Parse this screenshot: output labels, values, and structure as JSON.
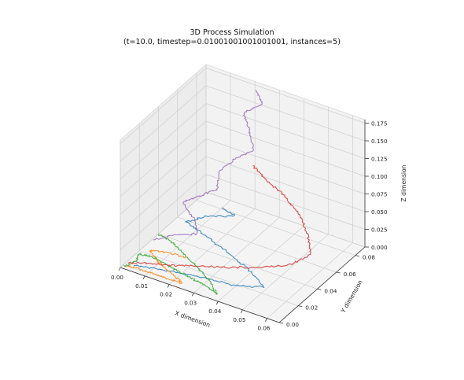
{
  "chart_data": {
    "type": "line",
    "title_lines": [
      "3D Process Simulation",
      "(t=10.0, timestep=0.01001001001001001, instances=5)"
    ],
    "xlabel": "X dimension",
    "ylabel": "Y dimension",
    "zlabel": "Z dimension",
    "xlim": [
      0,
      0.065
    ],
    "ylim": [
      0,
      0.09
    ],
    "zlim": [
      0,
      0.18
    ],
    "xticks": [
      "0.00",
      "0.01",
      "0.02",
      "0.03",
      "0.04",
      "0.05",
      "0.06"
    ],
    "yticks": [
      "0.00",
      "0.02",
      "0.04",
      "0.06",
      "0.08"
    ],
    "zticks": [
      "0.000",
      "0.025",
      "0.050",
      "0.075",
      "0.100",
      "0.125",
      "0.150",
      "0.175"
    ],
    "grid": true,
    "series": [
      {
        "color": "#1f77b4",
        "waypoints": [
          [
            0.004,
            0.004,
            0.003
          ],
          [
            0.012,
            0.006,
            0.006
          ],
          [
            0.022,
            0.01,
            0.006
          ],
          [
            0.032,
            0.012,
            0.007
          ],
          [
            0.042,
            0.016,
            0.005
          ],
          [
            0.05,
            0.022,
            0.007
          ],
          [
            0.04,
            0.03,
            0.012
          ],
          [
            0.028,
            0.036,
            0.017
          ],
          [
            0.018,
            0.04,
            0.022
          ],
          [
            0.01,
            0.044,
            0.025
          ],
          [
            0.016,
            0.05,
            0.032
          ],
          [
            0.026,
            0.054,
            0.04
          ],
          [
            0.02,
            0.056,
            0.042
          ]
        ]
      },
      {
        "color": "#ff7f0e",
        "waypoints": [
          [
            0.002,
            0.002,
            0.002
          ],
          [
            0.006,
            0.002,
            0.004
          ],
          [
            0.012,
            0.001,
            0.005
          ],
          [
            0.018,
            0.002,
            0.004
          ],
          [
            0.024,
            0.003,
            0.003
          ],
          [
            0.02,
            0.006,
            0.005
          ],
          [
            0.014,
            0.009,
            0.008
          ],
          [
            0.01,
            0.012,
            0.01
          ],
          [
            0.006,
            0.016,
            0.012
          ],
          [
            0.012,
            0.02,
            0.012
          ],
          [
            0.018,
            0.022,
            0.009
          ]
        ]
      },
      {
        "color": "#2ca02c",
        "waypoints": [
          [
            0.001,
            0.001,
            0.002
          ],
          [
            0.004,
            0.006,
            0.006
          ],
          [
            0.003,
            0.012,
            0.009
          ],
          [
            0.008,
            0.014,
            0.008
          ],
          [
            0.016,
            0.012,
            0.005
          ],
          [
            0.024,
            0.01,
            0.004
          ],
          [
            0.032,
            0.008,
            0.003
          ],
          [
            0.038,
            0.004,
            0.003
          ],
          [
            0.032,
            0.012,
            0.006
          ],
          [
            0.024,
            0.018,
            0.009
          ],
          [
            0.016,
            0.024,
            0.012
          ],
          [
            0.01,
            0.028,
            0.015
          ],
          [
            0.004,
            0.03,
            0.016
          ]
        ]
      },
      {
        "color": "#d62728",
        "waypoints": [
          [
            0.002,
            0.004,
            0.004
          ],
          [
            0.008,
            0.008,
            0.006
          ],
          [
            0.016,
            0.012,
            0.008
          ],
          [
            0.024,
            0.018,
            0.01
          ],
          [
            0.034,
            0.026,
            0.01
          ],
          [
            0.044,
            0.036,
            0.01
          ],
          [
            0.052,
            0.046,
            0.012
          ],
          [
            0.056,
            0.056,
            0.02
          ],
          [
            0.052,
            0.064,
            0.032
          ],
          [
            0.046,
            0.07,
            0.046
          ],
          [
            0.038,
            0.074,
            0.06
          ],
          [
            0.03,
            0.076,
            0.07
          ],
          [
            0.024,
            0.078,
            0.08
          ]
        ]
      },
      {
        "color": "#9467bd",
        "waypoints": [
          [
            0.006,
            0.02,
            0.022
          ],
          [
            0.012,
            0.026,
            0.03
          ],
          [
            0.02,
            0.03,
            0.036
          ],
          [
            0.016,
            0.036,
            0.046
          ],
          [
            0.01,
            0.04,
            0.056
          ],
          [
            0.014,
            0.044,
            0.064
          ],
          [
            0.02,
            0.05,
            0.074
          ],
          [
            0.018,
            0.058,
            0.09
          ],
          [
            0.022,
            0.064,
            0.104
          ],
          [
            0.028,
            0.068,
            0.118
          ],
          [
            0.024,
            0.074,
            0.134
          ],
          [
            0.02,
            0.078,
            0.15
          ],
          [
            0.026,
            0.082,
            0.164
          ],
          [
            0.022,
            0.086,
            0.175
          ]
        ]
      }
    ]
  }
}
